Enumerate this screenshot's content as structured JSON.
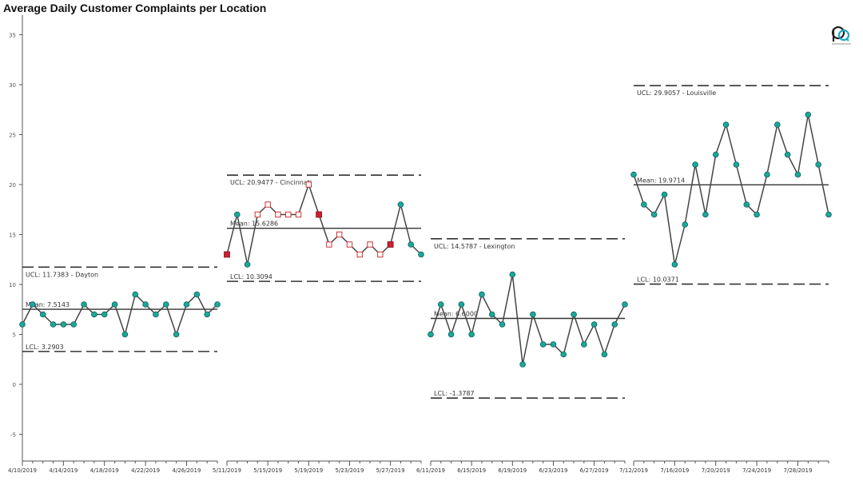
{
  "chart_data": {
    "type": "control-chart",
    "title": "Average Daily Customer Complaints per Location",
    "ylim": [
      -8,
      37
    ],
    "y_ticks": [
      -5,
      0,
      5,
      10,
      15,
      20,
      25,
      30,
      35
    ],
    "colors": {
      "point": "#19a89a",
      "point_stroke": "#155e58",
      "line": "#444444",
      "limit": "#333333",
      "violation_fill": "#cc2030",
      "violation_stroke": "#8a0f18",
      "warning_stroke": "#cc3333"
    },
    "panels": [
      {
        "location": "Dayton",
        "ucl": 11.7383,
        "mean": 7.5143,
        "lcl": 3.2903,
        "ucl_label": "UCL: 11.7383 - Dayton",
        "mean_label": "Mean: 7.5143",
        "lcl_label": "LCL: 3.2903",
        "x_labels": [
          "4/10/2019",
          "4/14/2019",
          "4/18/2019",
          "4/22/2019",
          "4/26/2019"
        ],
        "values": [
          6,
          8,
          7,
          6,
          6,
          6,
          8,
          7,
          7,
          8,
          5,
          9,
          8,
          7,
          8,
          5,
          8,
          9,
          7,
          8
        ],
        "flags": [
          "n",
          "n",
          "n",
          "n",
          "n",
          "n",
          "n",
          "n",
          "n",
          "n",
          "n",
          "n",
          "n",
          "n",
          "n",
          "n",
          "n",
          "n",
          "n",
          "n"
        ]
      },
      {
        "location": "Cincinnati",
        "ucl": 20.9477,
        "mean": 15.6286,
        "lcl": 10.3094,
        "ucl_label": "UCL: 20.9477 - Cincinnati",
        "mean_label": "Mean: 15.6286",
        "lcl_label": "LCL: 10.3094",
        "x_labels": [
          "5/11/2019",
          "5/15/2019",
          "5/19/2019",
          "5/23/2019",
          "5/27/2019"
        ],
        "values": [
          13,
          17,
          12,
          17,
          18,
          17,
          17,
          17,
          20,
          17,
          14,
          15,
          14,
          13,
          14,
          13,
          14,
          18,
          14,
          13
        ],
        "flags": [
          "v",
          "n",
          "n",
          "w",
          "w",
          "w",
          "w",
          "w",
          "w",
          "v",
          "w",
          "w",
          "w",
          "w",
          "w",
          "w",
          "v",
          "n",
          "n",
          "n"
        ]
      },
      {
        "location": "Lexington",
        "ucl": 14.5787,
        "mean": 6.6,
        "lcl": -1.3787,
        "ucl_label": "UCL: 14.5787 - Lexington",
        "mean_label": "Mean: 6.6000",
        "lcl_label": "LCL: -1.3787",
        "x_labels": [
          "6/11/2019",
          "6/15/2019",
          "6/19/2019",
          "6/23/2019",
          "6/27/2019"
        ],
        "values": [
          5,
          8,
          5,
          8,
          5,
          9,
          7,
          6,
          11,
          2,
          7,
          4,
          4,
          3,
          7,
          4,
          6,
          3,
          6,
          8
        ],
        "flags": [
          "n",
          "n",
          "n",
          "n",
          "n",
          "n",
          "n",
          "n",
          "n",
          "n",
          "n",
          "n",
          "n",
          "n",
          "n",
          "n",
          "n",
          "n",
          "n",
          "n"
        ]
      },
      {
        "location": "Louisville",
        "ucl": 29.9057,
        "mean": 19.9714,
        "lcl": 10.0371,
        "ucl_label": "UCL: 29.9057 - Louisville",
        "mean_label": "Mean: 19.9714",
        "lcl_label": "LCL: 10.0371",
        "x_labels": [
          "7/12/2019",
          "7/16/2019",
          "7/20/2019",
          "7/24/2019",
          "7/28/2019"
        ],
        "values": [
          21,
          18,
          17,
          19,
          12,
          16,
          22,
          17,
          23,
          26,
          22,
          18,
          17,
          21,
          26,
          23,
          21,
          27,
          22,
          17
        ],
        "flags": [
          "n",
          "n",
          "n",
          "n",
          "n",
          "n",
          "n",
          "n",
          "n",
          "n",
          "n",
          "n",
          "n",
          "n",
          "n",
          "n",
          "n",
          "n",
          "n",
          "n"
        ]
      }
    ]
  }
}
